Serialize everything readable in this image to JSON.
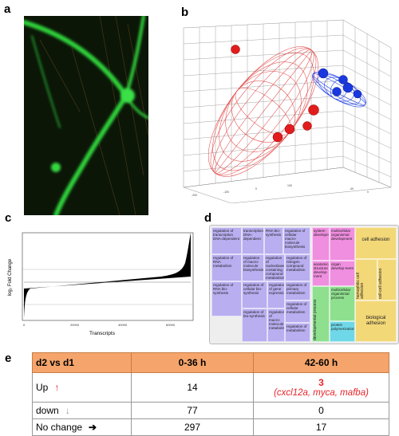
{
  "panel_labels": {
    "a": "a",
    "b": "b",
    "c": "c",
    "d": "d",
    "e": "e"
  },
  "panel_c": {
    "ylabel": "log₂ Fold Change",
    "xlabel": "Transcripts",
    "xticks": [
      "0",
      "20000",
      "40000",
      "60000"
    ]
  },
  "panel_d": {
    "tiles": [
      {
        "text": "regulation of transcription DNA-dependent",
        "color": "#b9aef0"
      },
      {
        "text": "transcription DNA-dependent",
        "color": "#b9aef0"
      },
      {
        "text": "RNA bio-synthesis",
        "color": "#b9aef0"
      },
      {
        "text": "regulation of cellular macro-molecule biosynthesis",
        "color": "#b9aef0"
      },
      {
        "text": "regulation of RNA metabolism",
        "color": "#b9aef0"
      },
      {
        "text": "regulation of macro-molecule biosynthesis",
        "color": "#b9aef0"
      },
      {
        "text": "regulation of nucleobase containing compound metabolism",
        "color": "#b9aef0"
      },
      {
        "text": "regulation of nitrogen compound metabolism",
        "color": "#b9aef0"
      },
      {
        "text": "regulation of RNA bio-synthesis",
        "color": "#b9aef0"
      },
      {
        "text": "regulation of cellular bio-synthesis",
        "color": "#b9aef0"
      },
      {
        "text": "regulation of gene expression",
        "color": "#b9aef0"
      },
      {
        "text": "regulation of primary metabolism",
        "color": "#b9aef0"
      },
      {
        "text": "regulation of bio-synthesis",
        "color": "#b9aef0"
      },
      {
        "text": "regulation of macro-molecule metabolism",
        "color": "#b9aef0"
      },
      {
        "text": "regulation of cellular metabolism",
        "color": "#b9aef0"
      },
      {
        "text": "regulation of metabolism",
        "color": "#b9aef0"
      },
      {
        "text": "system development",
        "color": "#f08ee0"
      },
      {
        "text": "multicellular organismal development",
        "color": "#f08ee0"
      },
      {
        "text": "anatomical structure develop-ment",
        "color": "#f08ee0"
      },
      {
        "text": "organ develop-ment",
        "color": "#f08ee0"
      },
      {
        "text": "developmental process",
        "color": "#8ee08e"
      },
      {
        "text": "multicellular organismal process",
        "color": "#8ee08e"
      },
      {
        "text": "protein polymerization",
        "color": "#6fd8e8"
      },
      {
        "text": "cell adhesion",
        "color": "#f3d878"
      },
      {
        "text": "homophilic cell adhesion",
        "color": "#f3d878"
      },
      {
        "text": "cell-cell adhesion",
        "color": "#f3d878"
      },
      {
        "text": "biological adhesion",
        "color": "#f3d878"
      }
    ]
  },
  "table": {
    "headers": [
      "d2 vs d1",
      "0-36 h",
      "42-60 h"
    ],
    "rows": [
      {
        "label": "Up",
        "arrow": "↑",
        "col1": "14",
        "col2": "3",
        "genes": "(cxcl12a, myca, mafba)"
      },
      {
        "label": "down",
        "arrow": "↓",
        "col1": "77",
        "col2": "0"
      },
      {
        "label": "No change",
        "arrow": "➔",
        "col1": "297",
        "col2": "17"
      }
    ]
  },
  "colors": {
    "header_bg": "#f5a56b",
    "up_arrow": "#e8232a",
    "down_arrow": "#999999",
    "red_cluster": "#e02020",
    "blue_cluster": "#1f3fe0"
  }
}
